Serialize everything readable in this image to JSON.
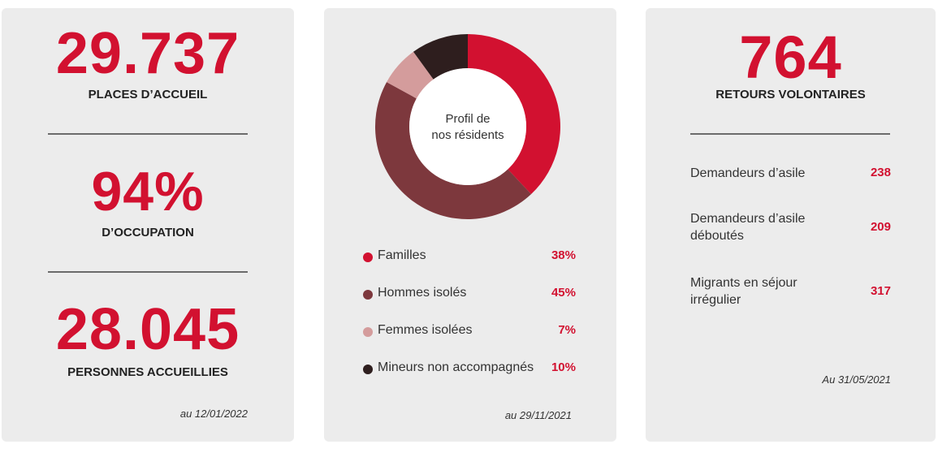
{
  "colors": {
    "accent_red": "#d21130",
    "card_bg": "#ececec"
  },
  "card1": {
    "places_value": "29.737",
    "places_label": "PLACES D’ACCUEIL",
    "occupation_value": "94%",
    "occupation_label": "D’OCCUPATION",
    "persons_value": "28.045",
    "persons_label": "PERSONNES ACCUEILLIES",
    "date": "au 12/01/2022"
  },
  "card2": {
    "date": "au 29/11/2021"
  },
  "chart_data": {
    "type": "pie",
    "title": "Profil de nos résidents",
    "title_lines": [
      "Profil de",
      "nos résidents"
    ],
    "donut": true,
    "series": [
      {
        "name": "Familles",
        "value": 38,
        "label": "38%",
        "color": "#d21130"
      },
      {
        "name": "Hommes isolés",
        "value": 45,
        "label": "45%",
        "color": "#7d383d"
      },
      {
        "name": "Femmes isolées",
        "value": 7,
        "label": "7%",
        "color": "#d49c9c"
      },
      {
        "name": "Mineurs non accompagnés",
        "value": 10,
        "label": "10%",
        "color": "#2e1e1e"
      }
    ]
  },
  "card3": {
    "returns_value": "764",
    "returns_label": "RETOURS VOLONTAIRES",
    "rows": [
      {
        "label": "Demandeurs d’asile",
        "value": "238"
      },
      {
        "label": "Demandeurs d’asile déboutés",
        "value": "209"
      },
      {
        "label": "Migrants en séjour irrégulier",
        "value": "317"
      }
    ],
    "date": "Au 31/05/2021"
  }
}
